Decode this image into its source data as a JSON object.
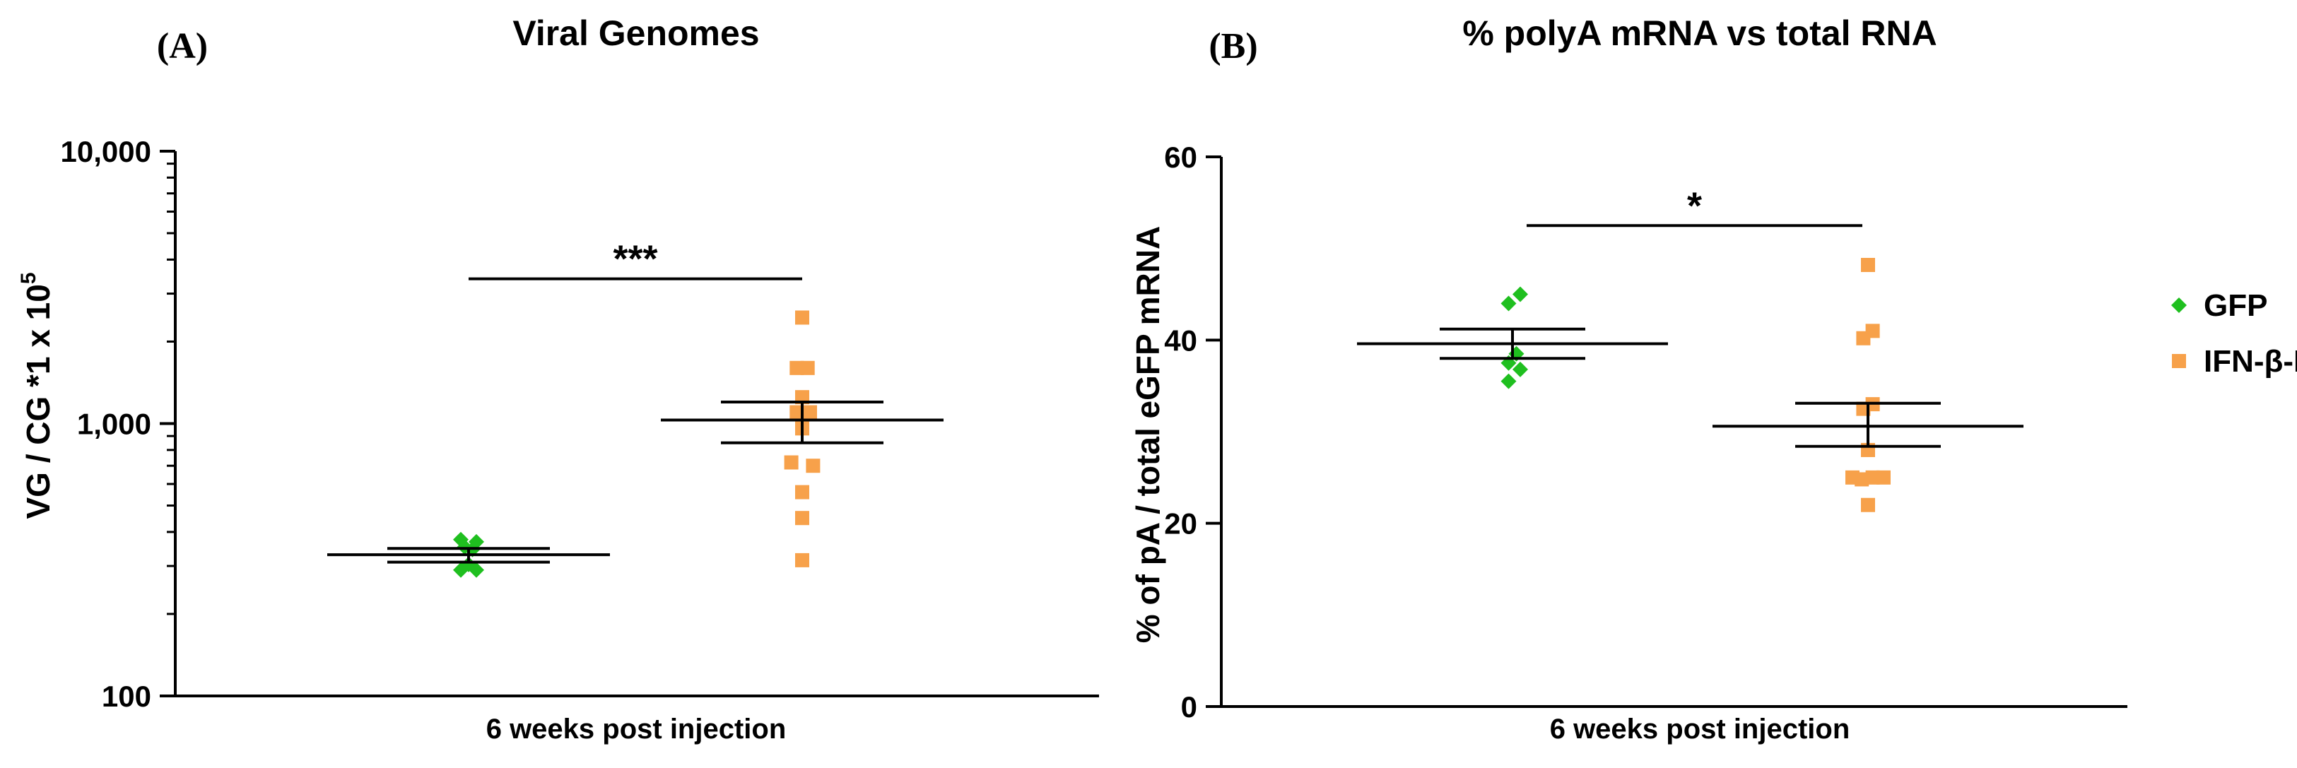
{
  "colors": {
    "gfp": "#1fbf1f",
    "ifn": "#f7a14a",
    "axis": "#000000"
  },
  "legend": {
    "position": "right",
    "entries": [
      {
        "label": "GFP",
        "marker": "diamond",
        "color": "#1fbf1f"
      },
      {
        "label": "IFN-β-F",
        "marker": "square",
        "color": "#f7a14a"
      }
    ]
  },
  "chart_data": [
    {
      "panel_label": "(A)",
      "type": "scatter",
      "title": "Viral Genomes",
      "xlabel": "6 weeks post injection",
      "ylabel": "VG / CG *1 x 10",
      "ylabel_superscript": "5",
      "yscale": "log",
      "ylim": [
        100,
        10000
      ],
      "yticks": [
        {
          "value": 100,
          "label": "100"
        },
        {
          "value": 1000,
          "label": "1,000"
        },
        {
          "value": 10000,
          "label": "10,000"
        }
      ],
      "significance": {
        "label": "***",
        "between": [
          "GFP",
          "IFN-β-F"
        ],
        "y": 3400
      },
      "series": [
        {
          "name": "GFP",
          "marker": "diamond",
          "points": [
            {
              "xo": -0.1,
              "y": 375
            },
            {
              "xo": 0.1,
              "y": 368
            },
            {
              "xo": -0.05,
              "y": 352
            },
            {
              "xo": 0.05,
              "y": 345
            },
            {
              "xo": -0.1,
              "y": 290
            },
            {
              "xo": 0.0,
              "y": 304
            },
            {
              "xo": 0.1,
              "y": 290
            }
          ],
          "mean": 330,
          "sem_low": 310,
          "sem_high": 348
        },
        {
          "name": "IFN-β-F",
          "marker": "square",
          "points": [
            {
              "xo": 0.0,
              "y": 2450
            },
            {
              "xo": -0.07,
              "y": 1600
            },
            {
              "xo": 0.07,
              "y": 1600
            },
            {
              "xo": 0.0,
              "y": 1250
            },
            {
              "xo": -0.07,
              "y": 1100
            },
            {
              "xo": 0.1,
              "y": 1100
            },
            {
              "xo": 0.0,
              "y": 960
            },
            {
              "xo": -0.14,
              "y": 720
            },
            {
              "xo": 0.14,
              "y": 700
            },
            {
              "xo": 0.0,
              "y": 560
            },
            {
              "xo": 0.0,
              "y": 450
            },
            {
              "xo": 0.0,
              "y": 315
            }
          ],
          "mean": 1030,
          "sem_low": 850,
          "sem_high": 1200
        }
      ]
    },
    {
      "panel_label": "(B)",
      "type": "scatter",
      "title": "% polyA mRNA vs total RNA",
      "xlabel": "6 weeks post injection",
      "ylabel": "% of pA / total eGFP mRNA",
      "yscale": "linear",
      "ylim": [
        0,
        60
      ],
      "yticks": [
        {
          "value": 0,
          "label": "0"
        },
        {
          "value": 20,
          "label": "20"
        },
        {
          "value": 40,
          "label": "40"
        },
        {
          "value": 60,
          "label": "60"
        }
      ],
      "significance": {
        "label": "*",
        "between": [
          "GFP",
          "IFN-β-F"
        ],
        "y": 52.5
      },
      "series": [
        {
          "name": "GFP",
          "marker": "diamond",
          "points": [
            {
              "xo": 0.1,
              "y": 45.0
            },
            {
              "xo": -0.05,
              "y": 44.0
            },
            {
              "xo": 0.05,
              "y": 38.5
            },
            {
              "xo": -0.05,
              "y": 37.5
            },
            {
              "xo": 0.1,
              "y": 36.8
            },
            {
              "xo": -0.05,
              "y": 35.5
            }
          ],
          "mean": 39.6,
          "sem_low": 38.0,
          "sem_high": 41.2
        },
        {
          "name": "IFN-β-F",
          "marker": "square",
          "points": [
            {
              "xo": 0.0,
              "y": 48.2
            },
            {
              "xo": 0.06,
              "y": 41.0
            },
            {
              "xo": -0.06,
              "y": 40.2
            },
            {
              "xo": 0.06,
              "y": 33.0
            },
            {
              "xo": -0.06,
              "y": 32.5
            },
            {
              "xo": 0.0,
              "y": 28.0
            },
            {
              "xo": -0.2,
              "y": 25.0
            },
            {
              "xo": -0.08,
              "y": 24.8
            },
            {
              "xo": 0.06,
              "y": 25.0
            },
            {
              "xo": 0.2,
              "y": 25.0
            },
            {
              "xo": 0.0,
              "y": 22.0
            }
          ],
          "mean": 30.6,
          "sem_low": 28.4,
          "sem_high": 33.1
        }
      ]
    }
  ]
}
